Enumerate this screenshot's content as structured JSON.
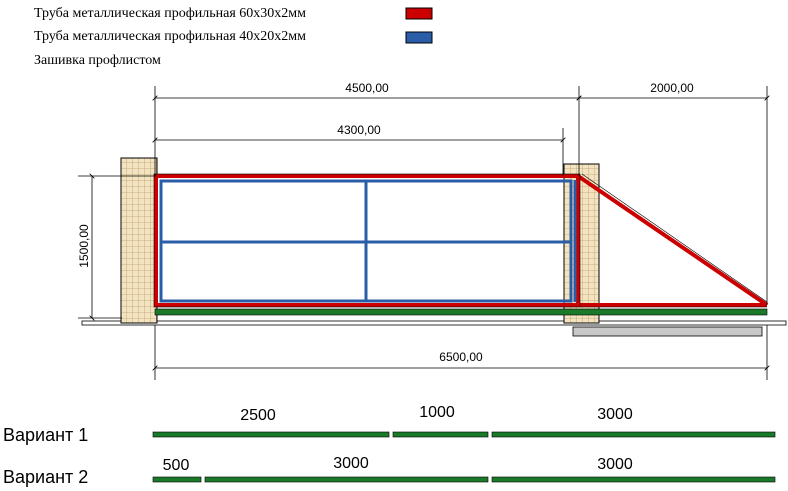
{
  "legend": [
    {
      "label": "Труба металлическая профильная 60х30х2мм",
      "color": "#cc0000"
    },
    {
      "label": "Труба металлическая профильная 40х20х2мм",
      "color": "#2a5da8"
    },
    {
      "label": "Зашивка профлистом",
      "color": ""
    }
  ],
  "dimensions": {
    "overall_top": "4500,00",
    "frame_width": "4300,00",
    "tail": "2000,00",
    "height": "1500,00",
    "total": "6500,00"
  },
  "variants": [
    {
      "label": "Вариант 1",
      "segments": [
        "2500",
        "1000",
        "3000"
      ]
    },
    {
      "label": "Вариант 2",
      "segments": [
        "500",
        "3000",
        "3000"
      ]
    }
  ],
  "colors": {
    "frame_outer": "#cc0000",
    "frame_inner": "#2a5da8",
    "rail": "#1a7a2a",
    "pillar_fill": "#f3e3c0",
    "pillar_grid": "#b8a070",
    "track": "#c8c8c8"
  }
}
